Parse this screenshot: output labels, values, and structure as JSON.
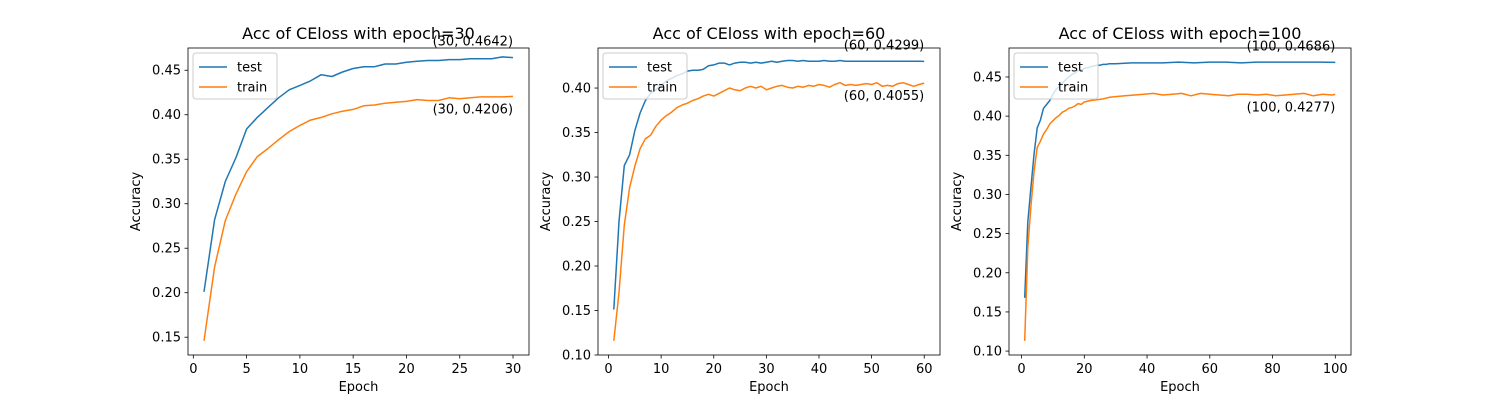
{
  "chart_data": [
    {
      "type": "line",
      "title": "Acc of CEloss with epoch=30",
      "xlabel": "Epoch",
      "ylabel": "Accuracy",
      "xlim": [
        -0.5,
        31.5
      ],
      "ylim": [
        0.13,
        0.475
      ],
      "xticks": [
        0,
        5,
        10,
        15,
        20,
        25,
        30
      ],
      "yticks": [
        0.15,
        0.2,
        0.25,
        0.3,
        0.35,
        0.4,
        0.45
      ],
      "ytick_decimals": 2,
      "legend": "upper-left",
      "series": [
        {
          "name": "test",
          "color": "#1f77b4",
          "x": [
            1,
            2,
            3,
            4,
            5,
            6,
            7,
            8,
            9,
            10,
            11,
            12,
            13,
            14,
            15,
            16,
            17,
            18,
            19,
            20,
            21,
            22,
            23,
            24,
            25,
            26,
            27,
            28,
            29,
            30
          ],
          "y": [
            0.201,
            0.282,
            0.325,
            0.352,
            0.384,
            0.397,
            0.408,
            0.419,
            0.428,
            0.433,
            0.438,
            0.445,
            0.443,
            0.448,
            0.452,
            0.454,
            0.454,
            0.457,
            0.457,
            0.459,
            0.46,
            0.461,
            0.461,
            0.462,
            0.462,
            0.463,
            0.463,
            0.463,
            0.465,
            0.4642
          ]
        },
        {
          "name": "train",
          "color": "#ff7f0e",
          "x": [
            1,
            2,
            3,
            4,
            5,
            6,
            7,
            8,
            9,
            10,
            11,
            12,
            13,
            14,
            15,
            16,
            17,
            18,
            19,
            20,
            21,
            22,
            23,
            24,
            25,
            26,
            27,
            28,
            29,
            30
          ],
          "y": [
            0.146,
            0.229,
            0.281,
            0.311,
            0.336,
            0.353,
            0.362,
            0.372,
            0.381,
            0.388,
            0.394,
            0.397,
            0.401,
            0.404,
            0.406,
            0.41,
            0.411,
            0.413,
            0.414,
            0.415,
            0.417,
            0.416,
            0.416,
            0.419,
            0.418,
            0.419,
            0.42,
            0.42,
            0.42,
            0.4206
          ]
        }
      ],
      "annotations": [
        {
          "text": "(30, 0.4642)",
          "x": 30,
          "y": 0.4642,
          "pos": "above"
        },
        {
          "text": "(30, 0.4206)",
          "x": 30,
          "y": 0.4206,
          "pos": "below"
        }
      ]
    },
    {
      "type": "line",
      "title": "Acc of CEloss with epoch=60",
      "xlabel": "Epoch",
      "ylabel": "Accuracy",
      "xlim": [
        -2,
        63
      ],
      "ylim": [
        0.1,
        0.445
      ],
      "xticks": [
        0,
        10,
        20,
        30,
        40,
        50,
        60
      ],
      "yticks": [
        0.1,
        0.15,
        0.2,
        0.25,
        0.3,
        0.35,
        0.4
      ],
      "ytick_decimals": 2,
      "legend": "upper-left",
      "series": [
        {
          "name": "test",
          "color": "#1f77b4",
          "x": [
            1,
            2,
            3,
            4,
            5,
            6,
            7,
            8,
            9,
            10,
            11,
            12,
            13,
            14,
            15,
            16,
            17,
            18,
            19,
            20,
            21,
            22,
            23,
            24,
            25,
            26,
            27,
            28,
            29,
            30,
            31,
            32,
            33,
            34,
            35,
            36,
            37,
            38,
            39,
            40,
            41,
            42,
            43,
            44,
            45,
            46,
            47,
            48,
            49,
            50,
            51,
            52,
            53,
            54,
            55,
            56,
            57,
            58,
            59,
            60
          ],
          "y": [
            0.151,
            0.25,
            0.313,
            0.325,
            0.352,
            0.372,
            0.386,
            0.394,
            0.398,
            0.403,
            0.408,
            0.411,
            0.414,
            0.416,
            0.419,
            0.42,
            0.42,
            0.421,
            0.425,
            0.426,
            0.428,
            0.428,
            0.426,
            0.428,
            0.429,
            0.429,
            0.428,
            0.429,
            0.428,
            0.429,
            0.43,
            0.429,
            0.43,
            0.431,
            0.431,
            0.43,
            0.431,
            0.43,
            0.43,
            0.43,
            0.431,
            0.43,
            0.43,
            0.431,
            0.43,
            0.43,
            0.43,
            0.43,
            0.43,
            0.43,
            0.43,
            0.43,
            0.43,
            0.43,
            0.43,
            0.43,
            0.43,
            0.43,
            0.43,
            0.4299
          ]
        },
        {
          "name": "train",
          "color": "#ff7f0e",
          "x": [
            1,
            2,
            3,
            4,
            5,
            6,
            7,
            8,
            9,
            10,
            11,
            12,
            13,
            14,
            15,
            16,
            17,
            18,
            19,
            20,
            21,
            22,
            23,
            24,
            25,
            26,
            27,
            28,
            29,
            30,
            31,
            32,
            33,
            34,
            35,
            36,
            37,
            38,
            39,
            40,
            41,
            42,
            43,
            44,
            45,
            46,
            47,
            48,
            49,
            50,
            51,
            52,
            53,
            54,
            55,
            56,
            57,
            58,
            59,
            60
          ],
          "y": [
            0.116,
            0.17,
            0.246,
            0.288,
            0.312,
            0.332,
            0.343,
            0.347,
            0.357,
            0.364,
            0.369,
            0.373,
            0.378,
            0.381,
            0.383,
            0.386,
            0.388,
            0.391,
            0.393,
            0.391,
            0.394,
            0.397,
            0.4,
            0.398,
            0.397,
            0.4,
            0.402,
            0.4,
            0.402,
            0.398,
            0.4,
            0.402,
            0.403,
            0.401,
            0.4,
            0.402,
            0.401,
            0.403,
            0.402,
            0.404,
            0.403,
            0.401,
            0.404,
            0.406,
            0.403,
            0.404,
            0.403,
            0.404,
            0.405,
            0.404,
            0.406,
            0.402,
            0.403,
            0.402,
            0.405,
            0.406,
            0.404,
            0.402,
            0.404,
            0.4055
          ]
        }
      ],
      "annotations": [
        {
          "text": "(60, 0.4299)",
          "x": 60,
          "y": 0.4299,
          "pos": "above"
        },
        {
          "text": "(60, 0.4055)",
          "x": 60,
          "y": 0.4055,
          "pos": "below"
        }
      ]
    },
    {
      "type": "line",
      "title": "Acc of CEloss with epoch=100",
      "xlabel": "Epoch",
      "ylabel": "Accuracy",
      "xlim": [
        -4,
        105
      ],
      "ylim": [
        0.095,
        0.487
      ],
      "xticks": [
        0,
        20,
        40,
        60,
        80,
        100
      ],
      "yticks": [
        0.1,
        0.15,
        0.2,
        0.25,
        0.3,
        0.35,
        0.4,
        0.45
      ],
      "ytick_decimals": 2,
      "legend": "upper-left",
      "series": [
        {
          "name": "test",
          "color": "#1f77b4",
          "x": [
            1,
            2,
            3,
            4,
            5,
            6,
            7,
            8,
            9,
            10,
            11,
            12,
            13,
            14,
            15,
            16,
            17,
            18,
            19,
            20,
            21,
            22,
            23,
            24,
            25,
            26,
            27,
            28,
            29,
            30,
            35,
            40,
            45,
            50,
            55,
            60,
            65,
            70,
            75,
            80,
            85,
            90,
            95,
            100
          ],
          "y": [
            0.168,
            0.265,
            0.31,
            0.352,
            0.385,
            0.395,
            0.41,
            0.415,
            0.42,
            0.428,
            0.434,
            0.438,
            0.442,
            0.446,
            0.45,
            0.453,
            0.455,
            0.458,
            0.459,
            0.461,
            0.462,
            0.463,
            0.464,
            0.465,
            0.465,
            0.466,
            0.466,
            0.467,
            0.467,
            0.467,
            0.468,
            0.468,
            0.468,
            0.469,
            0.468,
            0.469,
            0.469,
            0.468,
            0.469,
            0.469,
            0.469,
            0.469,
            0.469,
            0.4686
          ]
        },
        {
          "name": "train",
          "color": "#ff7f0e",
          "x": [
            1,
            2,
            3,
            4,
            5,
            6,
            7,
            8,
            9,
            10,
            11,
            12,
            13,
            14,
            15,
            16,
            17,
            18,
            19,
            20,
            22,
            24,
            26,
            28,
            30,
            33,
            36,
            39,
            42,
            45,
            48,
            51,
            54,
            57,
            60,
            63,
            66,
            69,
            72,
            75,
            78,
            81,
            84,
            87,
            90,
            93,
            96,
            99,
            100
          ],
          "y": [
            0.113,
            0.232,
            0.286,
            0.33,
            0.36,
            0.368,
            0.377,
            0.383,
            0.39,
            0.394,
            0.398,
            0.401,
            0.405,
            0.407,
            0.41,
            0.411,
            0.413,
            0.416,
            0.415,
            0.418,
            0.42,
            0.421,
            0.422,
            0.424,
            0.425,
            0.426,
            0.427,
            0.428,
            0.429,
            0.427,
            0.428,
            0.429,
            0.426,
            0.429,
            0.428,
            0.427,
            0.426,
            0.428,
            0.428,
            0.427,
            0.428,
            0.426,
            0.427,
            0.428,
            0.429,
            0.426,
            0.428,
            0.427,
            0.4277
          ]
        }
      ],
      "annotations": [
        {
          "text": "(100, 0.4686)",
          "x": 100,
          "y": 0.4686,
          "pos": "above"
        },
        {
          "text": "(100, 0.4277)",
          "x": 100,
          "y": 0.4277,
          "pos": "below"
        }
      ]
    }
  ]
}
